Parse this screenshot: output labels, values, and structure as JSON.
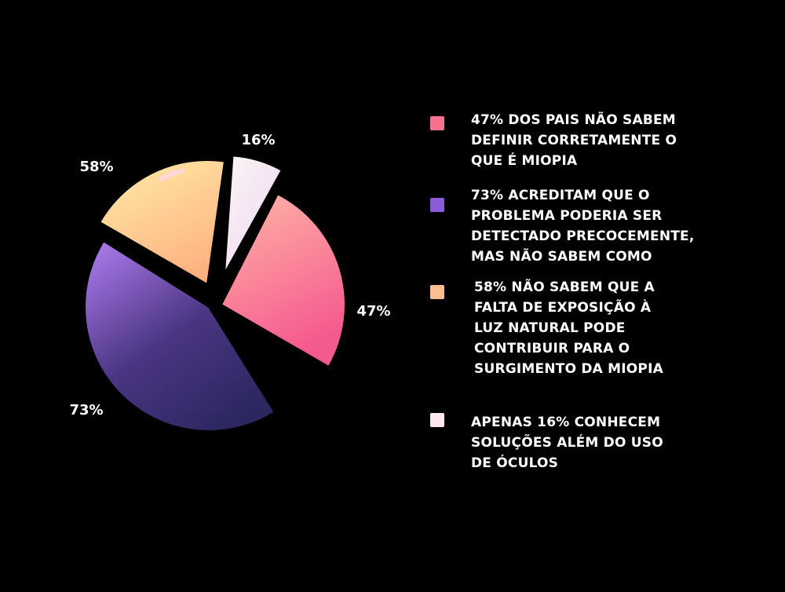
{
  "colors": {
    "background": "#000000",
    "text": "#ffffff",
    "slice_47": [
      "#ffb4a8",
      "#f55c8e"
    ],
    "slice_73": [
      "#b07ef0",
      "#2e2763"
    ],
    "slice_58": [
      "#ffe3a3",
      "#ffb27e"
    ],
    "slice_16": [
      "#fff2f2",
      "#ead8ef"
    ]
  },
  "chart_data": {
    "type": "pie",
    "slices": [
      {
        "label": "47%",
        "value": 47,
        "color": "#f8708f"
      },
      {
        "label": "73%",
        "value": 73,
        "color": "#5d3f9e"
      },
      {
        "label": "58%",
        "value": 58,
        "color": "#ffc98c"
      },
      {
        "label": "16%",
        "value": 16,
        "color": "#f7e4ec"
      }
    ],
    "legend_position": "right"
  },
  "legend": {
    "items": [
      {
        "text": "47% DOS PAIS NÃO SABEM\nDEFINIR CORRETAMENTE O\nQUE É MIOPIA",
        "color": "#f8718e"
      },
      {
        "text": "73% ACREDITAM QUE O\nPROBLEMA PODERIA SER\nDETECTADO PRECOCEMENTE,\nMAS NÃO SABEM COMO",
        "color": "#8c5bd8"
      },
      {
        "text": "58% NÃO SABEM QUE A\nFALTA DE EXPOSIÇÃO À\nLUZ NATURAL PODE\nCONTRIBUIR PARA O\nSURGIMENTO DA MIOPIA",
        "color": "#ffbe90"
      },
      {
        "text": "APENAS 16% CONHECEM\nSOLUÇÕES ALÉM DO USO\nDE ÓCULOS",
        "color": "#fde6ee"
      }
    ]
  }
}
